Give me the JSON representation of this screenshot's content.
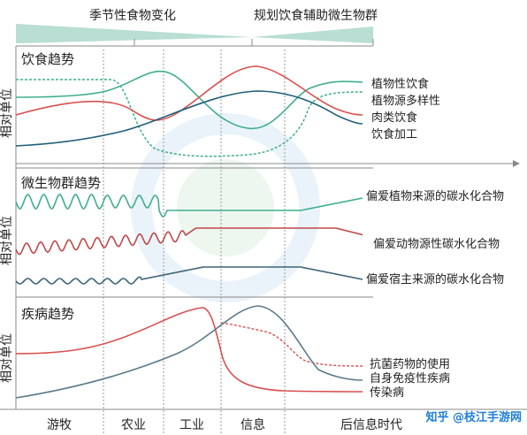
{
  "header": {
    "left_label": "季节性食物变化",
    "right_label": "规划饮食辅助微生物群"
  },
  "y_axis_label": "相对单位",
  "panels": [
    {
      "title": "饮食趋势",
      "series": [
        {
          "name": "植物性饮食",
          "color": "#3fae8f",
          "dashed": false
        },
        {
          "name": "植物源多样性",
          "color": "#3fae8f",
          "dashed": true
        },
        {
          "name": "肉类饮食",
          "color": "#d9504f",
          "dashed": false
        },
        {
          "name": "饮食加工",
          "color": "#1f5f78",
          "dashed": false
        }
      ]
    },
    {
      "title": "微生物群趋势",
      "series": [
        {
          "name": "偏爱植物来源的碳水化合物",
          "color": "#3fae8f",
          "dashed": false
        },
        {
          "name": "偏爱动物源性碳水化合物",
          "color": "#c04848",
          "dashed": false
        },
        {
          "name": "偏爱宿主来源的碳水化合物",
          "color": "#3f6478",
          "dashed": false
        }
      ]
    },
    {
      "title": "疾病趋势",
      "series": [
        {
          "name": "抗菌药物的使用",
          "color": "#d9504f",
          "dashed": true
        },
        {
          "name": "自身免疫性疾病",
          "color": "#5a7a8a",
          "dashed": false
        },
        {
          "name": "传染病",
          "color": "#d9504f",
          "dashed": false
        }
      ]
    }
  ],
  "eras": [
    "游牧",
    "农业",
    "工业",
    "信息",
    "后信息时代"
  ],
  "watermark": {
    "text": "知乎 @枝江手游网"
  },
  "colors": {
    "teal": "#3fae8f",
    "red": "#d9504f",
    "navy": "#1f5f78",
    "band": "#b9ded3",
    "divider": "#8a8a8a"
  }
}
